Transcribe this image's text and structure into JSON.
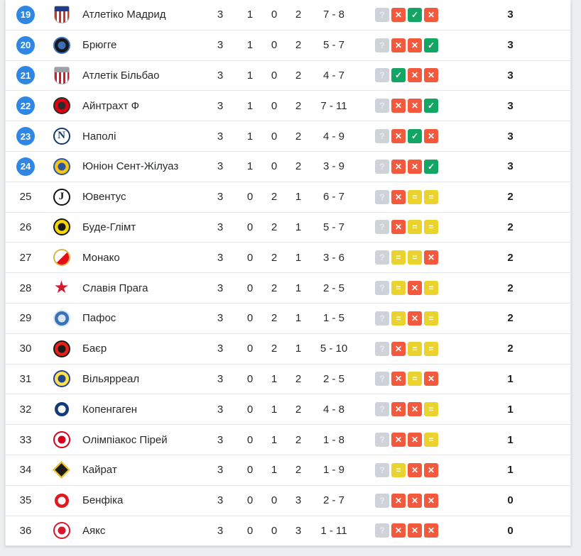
{
  "table": {
    "language": "uk",
    "accent_color": "#2e87e4",
    "form_colors": {
      "win": "#13a563",
      "draw": "#ead32f",
      "loss": "#f2593d",
      "unknown": "#ced3d9"
    },
    "form_glyphs": {
      "U": "?",
      "W": "✓",
      "D": "=",
      "L": "✕"
    },
    "rows": [
      {
        "pos": "19",
        "highlighted": true,
        "team": "Атлетіко Мадрид",
        "played": "3",
        "wins": "1",
        "draws": "0",
        "losses": "2",
        "goals": "7 - 8",
        "form": [
          "U",
          "L",
          "W",
          "L"
        ],
        "points": "3",
        "logo": {
          "type": "shield",
          "c1": "#cb3524",
          "c2": "#ffffff",
          "c3": "#1f3a93"
        }
      },
      {
        "pos": "20",
        "highlighted": true,
        "team": "Брюгге",
        "played": "3",
        "wins": "1",
        "draws": "0",
        "losses": "2",
        "goals": "5 - 7",
        "form": [
          "U",
          "L",
          "L",
          "W"
        ],
        "points": "3",
        "logo": {
          "type": "circle-dot",
          "c1": "#17181a",
          "c2": "#3a6fb7"
        }
      },
      {
        "pos": "21",
        "highlighted": true,
        "team": "Атлетік Більбао",
        "played": "3",
        "wins": "1",
        "draws": "0",
        "losses": "2",
        "goals": "4 - 7",
        "form": [
          "U",
          "W",
          "L",
          "L"
        ],
        "points": "3",
        "logo": {
          "type": "shield",
          "c1": "#d7182a",
          "c2": "#ffffff",
          "c3": "#9aa0a6"
        }
      },
      {
        "pos": "22",
        "highlighted": true,
        "team": "Айнтрахт Ф",
        "played": "3",
        "wins": "1",
        "draws": "0",
        "losses": "2",
        "goals": "7 - 11",
        "form": [
          "U",
          "L",
          "L",
          "W"
        ],
        "points": "3",
        "logo": {
          "type": "circle-dot",
          "c1": "#e1000f",
          "c2": "#2b2b2b"
        }
      },
      {
        "pos": "23",
        "highlighted": true,
        "team": "Наполі",
        "played": "3",
        "wins": "1",
        "draws": "0",
        "losses": "2",
        "goals": "4 - 9",
        "form": [
          "U",
          "L",
          "W",
          "L"
        ],
        "points": "3",
        "logo": {
          "type": "circle-letter",
          "c1": "#ffffff",
          "c2": "#12386e",
          "glyph": "N"
        }
      },
      {
        "pos": "24",
        "highlighted": true,
        "team": "Юніон Сент-Жілуаз",
        "played": "3",
        "wins": "1",
        "draws": "0",
        "losses": "2",
        "goals": "3 - 9",
        "form": [
          "U",
          "L",
          "L",
          "W"
        ],
        "points": "3",
        "logo": {
          "type": "circle-dot",
          "c1": "#f3c514",
          "c2": "#2c56a0"
        }
      },
      {
        "pos": "25",
        "highlighted": false,
        "team": "Ювентус",
        "played": "3",
        "wins": "0",
        "draws": "2",
        "losses": "1",
        "goals": "6 - 7",
        "form": [
          "U",
          "L",
          "D",
          "D"
        ],
        "points": "2",
        "logo": {
          "type": "circle-letter",
          "c1": "#ffffff",
          "c2": "#111111",
          "glyph": "J"
        }
      },
      {
        "pos": "26",
        "highlighted": false,
        "team": "Буде-Глімт",
        "played": "3",
        "wins": "0",
        "draws": "2",
        "losses": "1",
        "goals": "5 - 7",
        "form": [
          "U",
          "L",
          "D",
          "D"
        ],
        "points": "2",
        "logo": {
          "type": "circle-dot",
          "c1": "#f6d800",
          "c2": "#16181a"
        }
      },
      {
        "pos": "27",
        "highlighted": false,
        "team": "Монако",
        "played": "3",
        "wins": "0",
        "draws": "2",
        "losses": "1",
        "goals": "3 - 6",
        "form": [
          "U",
          "D",
          "D",
          "L"
        ],
        "points": "2",
        "logo": {
          "type": "half",
          "c1": "#ffffff",
          "c2": "#e20e17",
          "c3": "#d9b44a"
        }
      },
      {
        "pos": "28",
        "highlighted": false,
        "team": "Славія Прага",
        "played": "3",
        "wins": "0",
        "draws": "2",
        "losses": "1",
        "goals": "2 - 5",
        "form": [
          "U",
          "D",
          "L",
          "D"
        ],
        "points": "2",
        "logo": {
          "type": "star",
          "c1": "#d6192c"
        }
      },
      {
        "pos": "29",
        "highlighted": false,
        "team": "Пафос",
        "played": "3",
        "wins": "0",
        "draws": "2",
        "losses": "1",
        "goals": "1 - 5",
        "form": [
          "U",
          "D",
          "L",
          "D"
        ],
        "points": "2",
        "logo": {
          "type": "circle-dot",
          "c1": "#3a72b5",
          "c2": "#d8e6f3"
        }
      },
      {
        "pos": "30",
        "highlighted": false,
        "team": "Баєр",
        "played": "3",
        "wins": "0",
        "draws": "2",
        "losses": "1",
        "goals": "5 - 10",
        "form": [
          "U",
          "L",
          "D",
          "D"
        ],
        "points": "2",
        "logo": {
          "type": "circle-dot",
          "c1": "#e32219",
          "c2": "#1a1a1a"
        }
      },
      {
        "pos": "31",
        "highlighted": false,
        "team": "Вільярреал",
        "played": "3",
        "wins": "0",
        "draws": "1",
        "losses": "2",
        "goals": "2 - 5",
        "form": [
          "U",
          "L",
          "D",
          "L"
        ],
        "points": "1",
        "logo": {
          "type": "circle-dot",
          "c1": "#ffe24d",
          "c2": "#24448c"
        }
      },
      {
        "pos": "32",
        "highlighted": false,
        "team": "Копенгаген",
        "played": "3",
        "wins": "0",
        "draws": "1",
        "losses": "2",
        "goals": "4 - 8",
        "form": [
          "U",
          "L",
          "L",
          "D"
        ],
        "points": "1",
        "logo": {
          "type": "circle-dot",
          "c1": "#143a7c",
          "c2": "#ffffff"
        }
      },
      {
        "pos": "33",
        "highlighted": false,
        "team": "Олімпіакос Пірей",
        "played": "3",
        "wins": "0",
        "draws": "1",
        "losses": "2",
        "goals": "1 - 8",
        "form": [
          "U",
          "L",
          "L",
          "D"
        ],
        "points": "1",
        "logo": {
          "type": "circle-dot",
          "c1": "#ffffff",
          "c2": "#d6001c"
        }
      },
      {
        "pos": "34",
        "highlighted": false,
        "team": "Кайрат",
        "played": "3",
        "wins": "0",
        "draws": "1",
        "losses": "2",
        "goals": "1 - 9",
        "form": [
          "U",
          "D",
          "L",
          "L"
        ],
        "points": "1",
        "logo": {
          "type": "diamond",
          "c1": "#1b1b1b",
          "c2": "#f0c419"
        }
      },
      {
        "pos": "35",
        "highlighted": false,
        "team": "Бенфіка",
        "played": "3",
        "wins": "0",
        "draws": "0",
        "losses": "3",
        "goals": "2 - 7",
        "form": [
          "U",
          "L",
          "L",
          "L"
        ],
        "points": "0",
        "logo": {
          "type": "circle-dot",
          "c1": "#e5161d",
          "c2": "#ffffff"
        }
      },
      {
        "pos": "36",
        "highlighted": false,
        "team": "Аякс",
        "played": "3",
        "wins": "0",
        "draws": "0",
        "losses": "3",
        "goals": "1 - 11",
        "form": [
          "U",
          "L",
          "L",
          "L"
        ],
        "points": "0",
        "logo": {
          "type": "circle-dot",
          "c1": "#ffffff",
          "c2": "#d8172f"
        }
      }
    ]
  }
}
